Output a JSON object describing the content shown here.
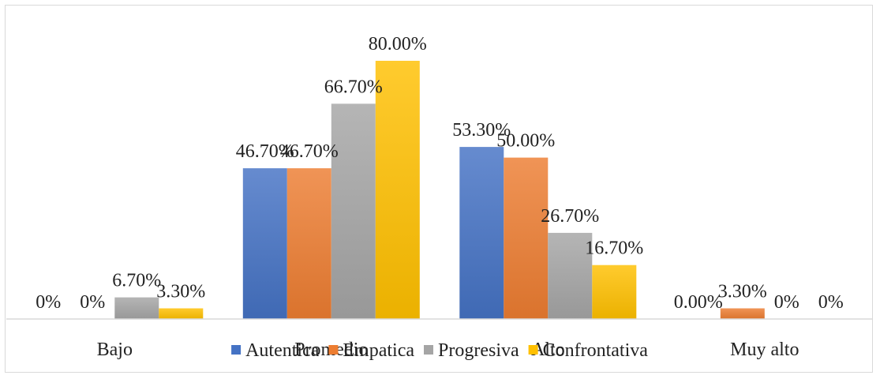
{
  "chart_data": {
    "type": "bar",
    "categories": [
      "Bajo",
      "Promedio",
      "Alto",
      "Muy alto"
    ],
    "series": [
      {
        "name": "Autentica",
        "values": [
          0,
          46.7,
          53.3,
          0
        ],
        "labels": [
          "0%",
          "46.70%",
          "53.30%",
          "0.00%"
        ],
        "color": "#4472C4"
      },
      {
        "name": "Empatica",
        "values": [
          0,
          46.7,
          50.0,
          3.3
        ],
        "labels": [
          "0%",
          "46.70%",
          "50.00%",
          "3.30%"
        ],
        "color": "#ED7D31"
      },
      {
        "name": "Progresiva",
        "values": [
          6.7,
          66.7,
          26.7,
          0
        ],
        "labels": [
          "6.70%",
          "66.70%",
          "26.70%",
          "0%"
        ],
        "color": "#A5A5A5"
      },
      {
        "name": "Confrontativa",
        "values": [
          3.3,
          80.0,
          16.7,
          0
        ],
        "labels": [
          "3.30%",
          "80.00%",
          "16.70%",
          "0%"
        ],
        "color": "#FFC000"
      }
    ],
    "ylim": [
      0,
      90
    ],
    "grid": false,
    "legend_position": "bottom",
    "title": "",
    "xlabel": "",
    "ylabel": ""
  }
}
